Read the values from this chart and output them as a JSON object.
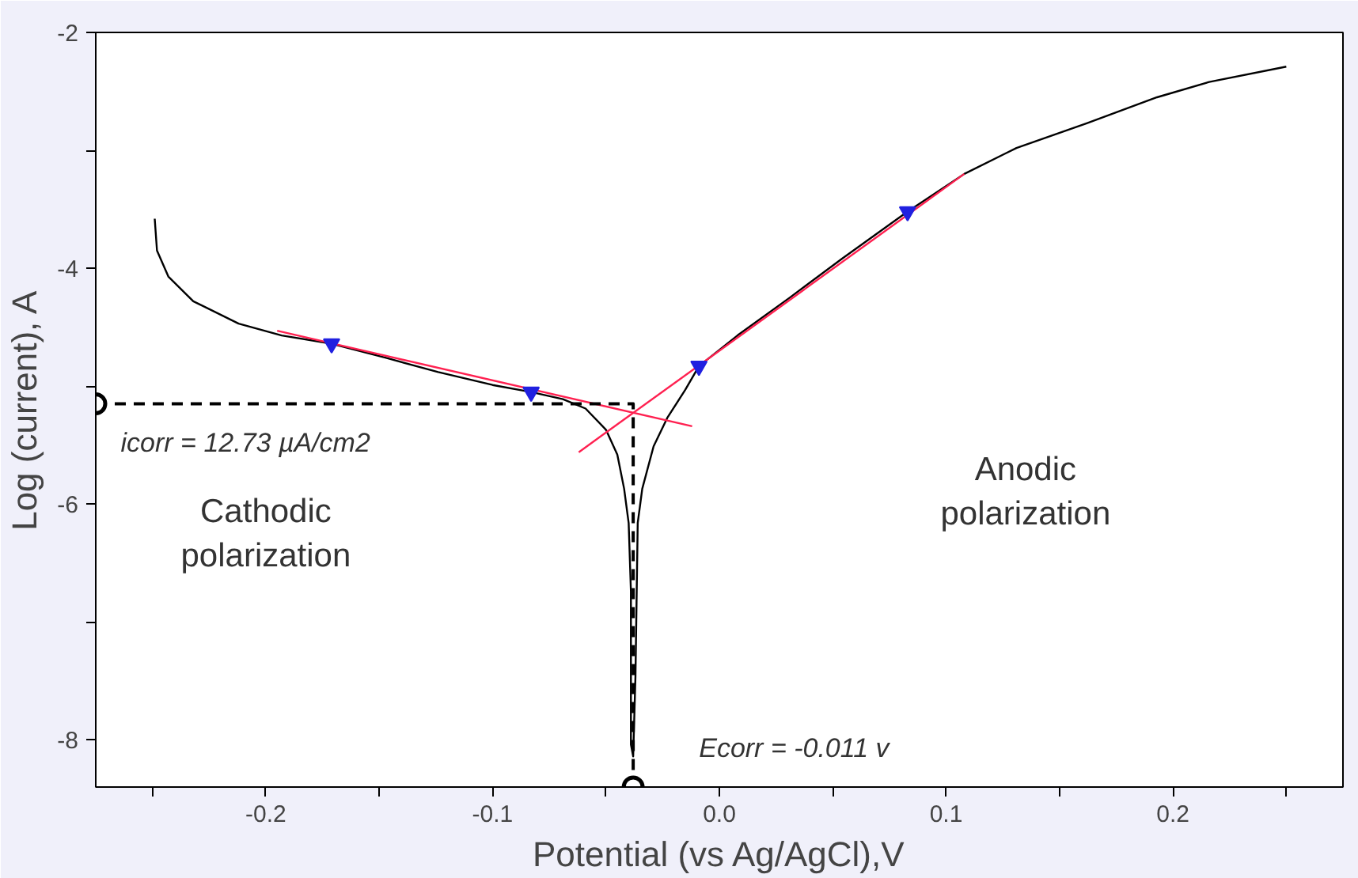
{
  "chart_data": {
    "type": "line",
    "xlabel": "Potential (vs Ag/AgCl),V",
    "ylabel": "Log (current), A",
    "xlim": [
      -0.275,
      0.275
    ],
    "ylim": [
      -8.4,
      -2
    ],
    "xticks": [
      {
        "value": -0.25,
        "label": null
      },
      -0.2,
      {
        "value": -0.15,
        "label": null
      },
      -0.1,
      {
        "value": -0.05,
        "label": null
      },
      {
        "value": 0,
        "label": "0.0"
      },
      {
        "value": 0.05,
        "label": null
      },
      0.1,
      {
        "value": 0.15,
        "label": null
      },
      0.2,
      {
        "value": 0.25,
        "label": null
      }
    ],
    "yticks": [
      -8,
      {
        "value": -7,
        "label": null
      },
      -6,
      {
        "value": -5,
        "label": null
      },
      -4,
      {
        "value": -3,
        "label": null
      },
      -2
    ],
    "grid": false,
    "series": [
      {
        "color": "#000000",
        "line_style": "solid",
        "marker": "none",
        "x": [
          -0.249,
          -0.248,
          -0.243,
          -0.232,
          -0.212,
          -0.193,
          -0.171,
          -0.147,
          -0.124,
          -0.1,
          -0.083,
          -0.069,
          -0.059,
          -0.05,
          -0.045,
          -0.042,
          -0.04,
          -0.039,
          -0.039,
          -0.038,
          -0.037,
          -0.036,
          -0.034,
          -0.029,
          -0.023,
          -0.015,
          -0.009,
          0.008,
          0.031,
          0.054,
          0.083,
          0.108,
          0.131,
          0.162,
          0.193,
          0.216,
          0.25
        ],
        "values": [
          -3.58,
          -3.85,
          -4.07,
          -4.28,
          -4.47,
          -4.57,
          -4.64,
          -4.76,
          -4.88,
          -4.99,
          -5.05,
          -5.11,
          -5.19,
          -5.37,
          -5.58,
          -5.87,
          -6.16,
          -6.74,
          -8.04,
          -8.14,
          -7.46,
          -6.16,
          -5.87,
          -5.51,
          -5.27,
          -5.03,
          -4.83,
          -4.57,
          -4.25,
          -3.92,
          -3.52,
          -3.2,
          -2.98,
          -2.77,
          -2.55,
          -2.42,
          -2.29
        ]
      },
      {
        "color": "#ff2050",
        "line_style": "solid",
        "marker": "none",
        "x": [
          -0.195,
          -0.012
        ],
        "values": [
          -4.53,
          -5.34
        ]
      },
      {
        "color": "#ff2050",
        "line_style": "solid",
        "marker": "none",
        "x": [
          -0.062,
          0.108
        ],
        "values": [
          -5.56,
          -3.2
        ]
      },
      {
        "color": "#000000",
        "line_style": "dashed",
        "marker": "none",
        "x": [
          -0.275,
          -0.038,
          -0.038
        ],
        "values": [
          -5.15,
          -5.15,
          -8.4
        ]
      },
      {
        "type": "scatter",
        "color": "#000000",
        "marker": "circle",
        "x": [
          -0.275,
          -0.038
        ],
        "values": [
          -5.15,
          -8.4
        ]
      },
      {
        "type": "scatter",
        "color": "#2020e0",
        "marker": "triangle",
        "x": [
          -0.171,
          -0.083,
          -0.009,
          0.083
        ],
        "values": [
          -4.64,
          -5.05,
          -4.83,
          -3.52
        ]
      }
    ],
    "annotations": [
      "icorr = 12.73 µA/cm2",
      "Ecorr = -0.011 v",
      "Cathodic\npolarization",
      "Anodic\npolarization"
    ]
  }
}
